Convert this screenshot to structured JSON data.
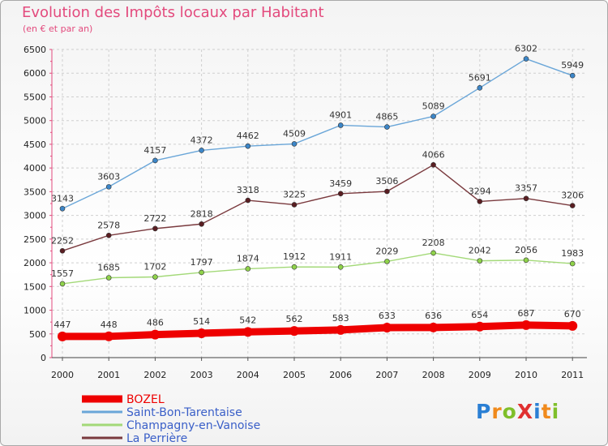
{
  "header": {
    "title": "Evolution des Impôts locaux par Habitant",
    "subtitle": "(en € et par an)"
  },
  "logo": {
    "text": "ProXiti",
    "colors": [
      "#2a7fd4",
      "#f08a1c",
      "#7fbf2a",
      "#e03030",
      "#2a7fd4",
      "#f08a1c",
      "#7fbf2a"
    ]
  },
  "chart_data": {
    "type": "line",
    "title": "Evolution des Impôts locaux par Habitant",
    "subtitle": "(en € et par an)",
    "xlabel": "",
    "ylabel": "",
    "x": [
      "2000",
      "2001",
      "2002",
      "2003",
      "2004",
      "2005",
      "2006",
      "2007",
      "2008",
      "2009",
      "2010",
      "2011"
    ],
    "yticks": [
      0,
      500,
      1000,
      1500,
      2000,
      2500,
      3000,
      3500,
      4000,
      4500,
      5000,
      5500,
      6000,
      6500
    ],
    "ylim": [
      0,
      6500
    ],
    "grid": true,
    "legend_position": "bottom-left",
    "series": [
      {
        "name": "BOZEL",
        "color": "#ee0000",
        "thick": true,
        "values": [
          447,
          448,
          486,
          514,
          542,
          562,
          583,
          633,
          636,
          654,
          687,
          670
        ]
      },
      {
        "name": "Saint-Bon-Tarentaise",
        "color": "#6aa6d8",
        "marker": "#3c86c8",
        "values": [
          3143,
          3603,
          4157,
          4372,
          4462,
          4509,
          4901,
          4865,
          5089,
          5691,
          6302,
          5949
        ]
      },
      {
        "name": "Champagny-en-Vanoise",
        "color": "#a3d978",
        "marker": "#8fd24a",
        "values": [
          1557,
          1685,
          1702,
          1797,
          1874,
          1912,
          1911,
          2029,
          2208,
          2042,
          2056,
          1983
        ]
      },
      {
        "name": "La Perrière",
        "color": "#7a3a3e",
        "marker": "#5a1e22",
        "values": [
          2252,
          2578,
          2722,
          2818,
          3318,
          3225,
          3459,
          3506,
          4066,
          3294,
          3357,
          3206
        ]
      }
    ]
  }
}
